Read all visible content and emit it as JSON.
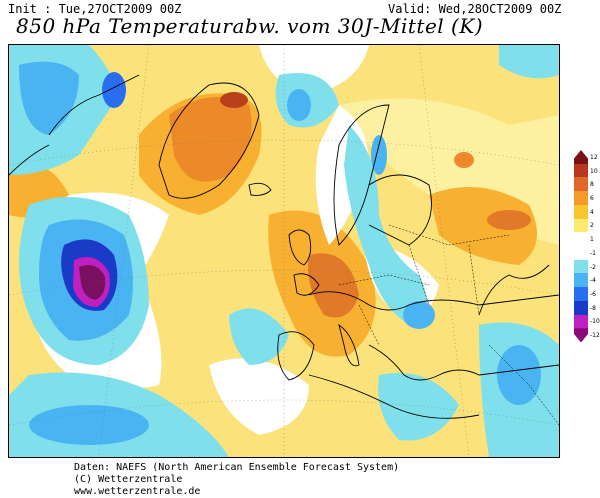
{
  "header": {
    "init": "Init : Tue,27OCT2009 00Z",
    "valid": "Valid: Wed,28OCT2009 00Z",
    "title": "850 hPa Temperaturabw. vom 30J-Mittel (K)"
  },
  "colorbar": {
    "ticks": [
      "12",
      "10",
      "8",
      "6",
      "4",
      "2",
      "1",
      "-1",
      "-2",
      "-4",
      "-6",
      "-8",
      "-10",
      "-12"
    ],
    "colors": [
      "#7a1414",
      "#b7361c",
      "#e0662a",
      "#f39a2a",
      "#f9c62e",
      "#fbea6e",
      "#ffffff",
      "#ffffff",
      "#7fe0ec",
      "#4ab4f2",
      "#2a6ef0",
      "#1a3ac8",
      "#c020c0",
      "#8a0a7a"
    ]
  },
  "footer": {
    "line1": "Daten: NAEFS (North American Ensemble Forecast System)",
    "line2": "(C) Wetterzentrale",
    "line3": "www.wetterzentrale.de"
  }
}
